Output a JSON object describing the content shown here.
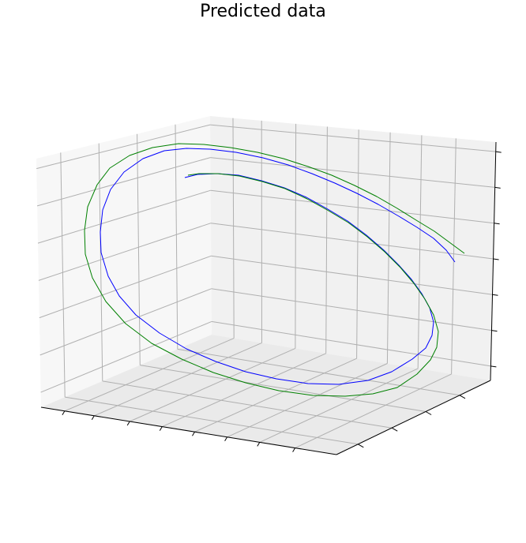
{
  "chart_data": {
    "type": "line3d",
    "title": "Predicted data",
    "xlabel": "",
    "ylabel": "",
    "zlabel": "",
    "tick_labels_visible": false,
    "grid": true,
    "series": [
      {
        "color": "#0000ff",
        "closed": false,
        "points": [
          [
            234,
            225
          ],
          [
            250,
            221
          ],
          [
            275,
            220
          ],
          [
            302,
            222
          ],
          [
            331,
            229
          ],
          [
            360,
            238
          ],
          [
            388,
            250
          ],
          [
            415,
            265
          ],
          [
            440,
            280
          ],
          [
            464,
            298
          ],
          [
            486,
            317
          ],
          [
            505,
            336
          ],
          [
            521,
            354
          ],
          [
            534,
            372
          ],
          [
            544,
            390
          ],
          [
            549,
            408
          ],
          [
            547,
            425
          ],
          [
            539,
            441
          ],
          [
            522,
            455
          ],
          [
            496,
            471
          ],
          [
            466,
            482
          ],
          [
            429,
            487
          ],
          [
            390,
            486
          ],
          [
            350,
            480
          ],
          [
            311,
            471
          ],
          [
            273,
            458
          ],
          [
            236,
            442
          ],
          [
            202,
            422
          ],
          [
            172,
            399
          ],
          [
            151,
            375
          ],
          [
            137,
            350
          ],
          [
            128,
            320
          ],
          [
            127,
            294
          ],
          [
            130,
            266
          ],
          [
            140,
            240
          ],
          [
            157,
            218
          ],
          [
            181,
            201
          ],
          [
            208,
            191
          ],
          [
            236,
            188
          ],
          [
            266,
            189
          ],
          [
            299,
            193
          ],
          [
            333,
            200
          ],
          [
            365,
            209
          ],
          [
            395,
            220
          ],
          [
            424,
            232
          ],
          [
            452,
            245
          ],
          [
            479,
            259
          ],
          [
            505,
            274
          ],
          [
            528,
            288
          ],
          [
            549,
            302
          ],
          [
            565,
            317
          ],
          [
            576,
            332
          ]
        ]
      },
      {
        "color": "#008000",
        "closed": false,
        "points": [
          [
            238,
            222
          ],
          [
            252,
            220
          ],
          [
            276,
            220
          ],
          [
            303,
            223
          ],
          [
            332,
            230
          ],
          [
            361,
            239
          ],
          [
            389,
            252
          ],
          [
            416,
            267
          ],
          [
            441,
            282
          ],
          [
            465,
            300
          ],
          [
            487,
            319
          ],
          [
            507,
            339
          ],
          [
            524,
            359
          ],
          [
            538,
            379
          ],
          [
            549,
            399
          ],
          [
            555,
            420
          ],
          [
            553,
            440
          ],
          [
            545,
            456
          ],
          [
            528,
            474
          ],
          [
            503,
            491
          ],
          [
            472,
            499
          ],
          [
            437,
            502
          ],
          [
            396,
            501
          ],
          [
            353,
            495
          ],
          [
            311,
            485
          ],
          [
            270,
            472
          ],
          [
            230,
            455
          ],
          [
            192,
            435
          ],
          [
            159,
            410
          ],
          [
            134,
            382
          ],
          [
            117,
            352
          ],
          [
            108,
            322
          ],
          [
            107,
            292
          ],
          [
            111,
            262
          ],
          [
            123,
            234
          ],
          [
            139,
            213
          ],
          [
            164,
            197
          ],
          [
            193,
            187
          ],
          [
            226,
            182
          ],
          [
            258,
            183
          ],
          [
            292,
            187
          ],
          [
            326,
            193
          ],
          [
            359,
            201
          ],
          [
            390,
            211
          ],
          [
            420,
            222
          ],
          [
            449,
            235
          ],
          [
            477,
            249
          ],
          [
            503,
            264
          ],
          [
            527,
            279
          ],
          [
            550,
            293
          ],
          [
            569,
            307
          ],
          [
            588,
            321
          ]
        ]
      }
    ]
  }
}
